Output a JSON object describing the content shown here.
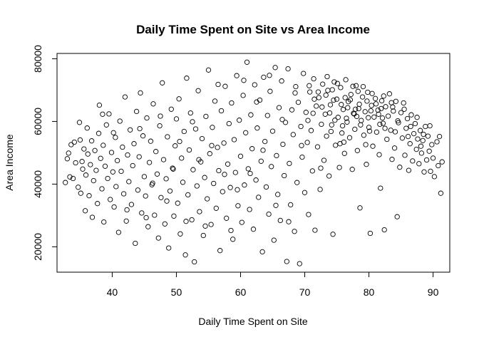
{
  "chart_data": {
    "type": "scatter",
    "title": "Daily Time Spent on Site vs Area Income",
    "xlabel": "Daily  Time Spent on Site",
    "ylabel": "Area Income",
    "xlim": [
      31.4,
      92.6
    ],
    "ylim": [
      11900,
      81700
    ],
    "xticks": [
      40,
      50,
      60,
      70,
      80,
      90
    ],
    "yticks": [
      20000,
      40000,
      60000,
      80000
    ],
    "marker": "open-circle",
    "grid": false,
    "legend": "none",
    "points": [
      [
        32.7,
        40500
      ],
      [
        33.0,
        48100
      ],
      [
        33.2,
        49900
      ],
      [
        33.4,
        42300
      ],
      [
        33.6,
        52600
      ],
      [
        33.9,
        41800
      ],
      [
        34.1,
        53400
      ],
      [
        34.3,
        46800
      ],
      [
        34.7,
        39000
      ],
      [
        34.9,
        59700
      ],
      [
        35.0,
        54100
      ],
      [
        35.1,
        37100
      ],
      [
        35.3,
        47200
      ],
      [
        35.4,
        44800
      ],
      [
        35.6,
        51200
      ],
      [
        35.8,
        31500
      ],
      [
        35.9,
        42900
      ],
      [
        36.1,
        57900
      ],
      [
        36.2,
        49600
      ],
      [
        36.4,
        36300
      ],
      [
        36.6,
        46200
      ],
      [
        36.8,
        53800
      ],
      [
        36.9,
        29400
      ],
      [
        37.1,
        41100
      ],
      [
        37.3,
        50700
      ],
      [
        37.5,
        44400
      ],
      [
        37.7,
        33800
      ],
      [
        37.9,
        56200
      ],
      [
        38.0,
        65200
      ],
      [
        38.2,
        48200
      ],
      [
        38.4,
        38500
      ],
      [
        38.6,
        52400
      ],
      [
        38.7,
        27900
      ],
      [
        38.9,
        45700
      ],
      [
        39.1,
        58900
      ],
      [
        39.3,
        41800
      ],
      [
        39.5,
        62400
      ],
      [
        39.7,
        35100
      ],
      [
        39.9,
        50100
      ],
      [
        40.1,
        43900
      ],
      [
        40.3,
        32700
      ],
      [
        40.5,
        54900
      ],
      [
        40.6,
        39200
      ],
      [
        40.8,
        47500
      ],
      [
        41.0,
        24600
      ],
      [
        41.2,
        60100
      ],
      [
        41.4,
        44100
      ],
      [
        41.6,
        51800
      ],
      [
        41.8,
        36900
      ],
      [
        42.0,
        67800
      ],
      [
        42.2,
        28200
      ],
      [
        42.4,
        49300
      ],
      [
        42.6,
        40800
      ],
      [
        42.8,
        57300
      ],
      [
        43.0,
        33500
      ],
      [
        43.2,
        45900
      ],
      [
        43.4,
        52900
      ],
      [
        43.6,
        21100
      ],
      [
        43.8,
        63200
      ],
      [
        44.0,
        38100
      ],
      [
        44.2,
        48700
      ],
      [
        44.4,
        69100
      ],
      [
        44.6,
        30800
      ],
      [
        44.8,
        55400
      ],
      [
        45.0,
        42400
      ],
      [
        45.2,
        36200
      ],
      [
        45.4,
        61100
      ],
      [
        45.6,
        26400
      ],
      [
        45.8,
        46900
      ],
      [
        46.0,
        53700
      ],
      [
        46.2,
        39800
      ],
      [
        46.4,
        65600
      ],
      [
        46.6,
        30100
      ],
      [
        46.8,
        50400
      ],
      [
        47.0,
        43200
      ],
      [
        47.2,
        22800
      ],
      [
        47.4,
        58600
      ],
      [
        47.6,
        35700
      ],
      [
        47.8,
        72300
      ],
      [
        48.0,
        47800
      ],
      [
        48.2,
        27300
      ],
      [
        48.4,
        41700
      ],
      [
        48.6,
        55100
      ],
      [
        48.8,
        19600
      ],
      [
        49.0,
        37800
      ],
      [
        49.2,
        63900
      ],
      [
        49.4,
        45100
      ],
      [
        49.6,
        29800
      ],
      [
        49.8,
        52200
      ],
      [
        50.0,
        60800
      ],
      [
        50.2,
        33900
      ],
      [
        50.4,
        67200
      ],
      [
        50.6,
        24100
      ],
      [
        50.8,
        48300
      ],
      [
        51.0,
        40600
      ],
      [
        51.2,
        56800
      ],
      [
        51.4,
        17400
      ],
      [
        51.6,
        73800
      ],
      [
        51.8,
        36600
      ],
      [
        52.0,
        50900
      ],
      [
        52.2,
        62700
      ],
      [
        52.4,
        28600
      ],
      [
        52.6,
        44600
      ],
      [
        52.8,
        15200
      ],
      [
        53.0,
        57600
      ],
      [
        53.2,
        39400
      ],
      [
        53.4,
        69800
      ],
      [
        53.6,
        31200
      ],
      [
        53.8,
        47100
      ],
      [
        54.0,
        54500
      ],
      [
        54.2,
        23600
      ],
      [
        54.4,
        42100
      ],
      [
        54.6,
        61600
      ],
      [
        54.8,
        35300
      ],
      [
        55.0,
        76400
      ],
      [
        55.2,
        49700
      ],
      [
        55.4,
        27100
      ],
      [
        55.6,
        58100
      ],
      [
        55.8,
        40200
      ],
      [
        56.0,
        66500
      ],
      [
        56.2,
        32300
      ],
      [
        56.4,
        51700
      ],
      [
        56.6,
        44300
      ],
      [
        56.8,
        18800
      ],
      [
        57.0,
        63400
      ],
      [
        57.2,
        37600
      ],
      [
        57.4,
        53100
      ],
      [
        57.6,
        71200
      ],
      [
        57.8,
        29100
      ],
      [
        58.0,
        46400
      ],
      [
        58.2,
        59300
      ],
      [
        58.4,
        38900
      ],
      [
        58.6,
        65900
      ],
      [
        58.8,
        22400
      ],
      [
        59.0,
        54200
      ],
      [
        59.2,
        43700
      ],
      [
        59.4,
        74600
      ],
      [
        59.6,
        33100
      ],
      [
        59.8,
        60400
      ],
      [
        60.0,
        48900
      ],
      [
        60.2,
        27800
      ],
      [
        60.4,
        68300
      ],
      [
        60.6,
        39700
      ],
      [
        60.8,
        56400
      ],
      [
        61.0,
        78900
      ],
      [
        61.2,
        44900
      ],
      [
        61.4,
        31900
      ],
      [
        61.6,
        62100
      ],
      [
        61.8,
        51300
      ],
      [
        62.0,
        25600
      ],
      [
        62.2,
        71700
      ],
      [
        62.4,
        41300
      ],
      [
        62.6,
        57900
      ],
      [
        62.8,
        35800
      ],
      [
        63.0,
        66800
      ],
      [
        63.2,
        47300
      ],
      [
        63.4,
        18400
      ],
      [
        63.6,
        74100
      ],
      [
        63.8,
        53600
      ],
      [
        64.0,
        39100
      ],
      [
        64.2,
        61900
      ],
      [
        64.4,
        30400
      ],
      [
        64.6,
        69600
      ],
      [
        64.8,
        45600
      ],
      [
        65.0,
        56900
      ],
      [
        65.2,
        22100
      ],
      [
        65.4,
        77200
      ],
      [
        65.6,
        49100
      ],
      [
        65.8,
        36700
      ],
      [
        66.0,
        64400
      ],
      [
        66.2,
        28400
      ],
      [
        66.4,
        72900
      ],
      [
        66.6,
        52700
      ],
      [
        66.8,
        42700
      ],
      [
        67.0,
        59700
      ],
      [
        67.2,
        15300
      ],
      [
        67.4,
        76800
      ],
      [
        67.6,
        46600
      ],
      [
        67.8,
        33400
      ],
      [
        68.0,
        63700
      ],
      [
        68.2,
        55800
      ],
      [
        68.4,
        24900
      ],
      [
        68.6,
        71100
      ],
      [
        68.8,
        40500
      ],
      [
        69.0,
        66100
      ],
      [
        69.2,
        14600
      ],
      [
        69.4,
        58400
      ],
      [
        69.6,
        48600
      ],
      [
        69.8,
        75300
      ],
      [
        70.0,
        37300
      ],
      [
        70.2,
        62900
      ],
      [
        70.4,
        53300
      ],
      [
        70.6,
        30300
      ],
      [
        70.8,
        69400
      ],
      [
        71.0,
        57100
      ],
      [
        71.2,
        44200
      ],
      [
        71.4,
        73600
      ],
      [
        71.6,
        25300
      ],
      [
        71.8,
        64900
      ],
      [
        72.0,
        51900
      ],
      [
        72.2,
        67600
      ],
      [
        72.4,
        38300
      ],
      [
        72.6,
        59100
      ],
      [
        72.8,
        71900
      ],
      [
        73.0,
        47600
      ],
      [
        73.2,
        62300
      ],
      [
        73.4,
        55300
      ],
      [
        73.6,
        69900
      ],
      [
        73.8,
        42600
      ],
      [
        74.0,
        65300
      ],
      [
        74.2,
        58900
      ],
      [
        74.4,
        24000
      ],
      [
        74.6,
        72600
      ],
      [
        74.8,
        52400
      ],
      [
        75.0,
        67100
      ],
      [
        75.2,
        61300
      ],
      [
        75.4,
        45300
      ],
      [
        75.6,
        70800
      ],
      [
        75.8,
        56300
      ],
      [
        76.0,
        63800
      ],
      [
        76.2,
        49800
      ],
      [
        76.4,
        73300
      ],
      [
        76.6,
        59800
      ],
      [
        76.8,
        66300
      ],
      [
        77.0,
        54800
      ],
      [
        77.2,
        68600
      ],
      [
        77.4,
        44700
      ],
      [
        77.6,
        62600
      ],
      [
        77.8,
        57500
      ],
      [
        78.0,
        71400
      ],
      [
        78.2,
        50700
      ],
      [
        78.4,
        64100
      ],
      [
        78.6,
        32400
      ],
      [
        78.8,
        60300
      ],
      [
        79.0,
        67800
      ],
      [
        79.2,
        55600
      ],
      [
        79.4,
        63100
      ],
      [
        79.6,
        46300
      ],
      [
        79.8,
        69300
      ],
      [
        80.0,
        58100
      ],
      [
        80.2,
        24300
      ],
      [
        80.4,
        65100
      ],
      [
        80.6,
        52100
      ],
      [
        80.8,
        61400
      ],
      [
        81.0,
        67300
      ],
      [
        81.2,
        56600
      ],
      [
        81.4,
        63600
      ],
      [
        81.6,
        49400
      ],
      [
        81.8,
        38700
      ],
      [
        82.0,
        66600
      ],
      [
        82.2,
        59400
      ],
      [
        82.4,
        25400
      ],
      [
        82.6,
        64700
      ],
      [
        82.8,
        54300
      ],
      [
        83.0,
        61700
      ],
      [
        83.2,
        68800
      ],
      [
        83.4,
        57200
      ],
      [
        83.6,
        47900
      ],
      [
        83.8,
        63300
      ],
      [
        84.0,
        51500
      ],
      [
        84.2,
        66400
      ],
      [
        84.4,
        29600
      ],
      [
        84.6,
        59600
      ],
      [
        84.8,
        45400
      ],
      [
        85.0,
        62800
      ],
      [
        85.2,
        54700
      ],
      [
        85.4,
        65900
      ],
      [
        85.6,
        49200
      ],
      [
        85.8,
        57800
      ],
      [
        86.0,
        60900
      ],
      [
        86.2,
        44400
      ],
      [
        86.4,
        52900
      ],
      [
        86.6,
        62100
      ],
      [
        86.8,
        47400
      ],
      [
        87.0,
        56100
      ],
      [
        87.2,
        59300
      ],
      [
        87.4,
        51100
      ],
      [
        87.6,
        54400
      ],
      [
        87.8,
        46500
      ],
      [
        88.0,
        57100
      ],
      [
        88.2,
        49900
      ],
      [
        88.4,
        53900
      ],
      [
        88.6,
        43900
      ],
      [
        88.8,
        58400
      ],
      [
        89.0,
        47700
      ],
      [
        89.2,
        55300
      ],
      [
        89.4,
        50500
      ],
      [
        89.6,
        44100
      ],
      [
        89.8,
        52600
      ],
      [
        90.0,
        48300
      ],
      [
        90.2,
        42400
      ],
      [
        90.6,
        53500
      ],
      [
        90.8,
        45900
      ],
      [
        91.0,
        55200
      ],
      [
        91.2,
        37100
      ],
      [
        91.4,
        47100
      ],
      [
        38.5,
        62300
      ],
      [
        40.2,
        56400
      ],
      [
        42.3,
        31800
      ],
      [
        44.3,
        57700
      ],
      [
        45.3,
        29300
      ],
      [
        46.3,
        40300
      ],
      [
        47.5,
        61700
      ],
      [
        48.5,
        34600
      ],
      [
        49.5,
        44800
      ],
      [
        50.5,
        53600
      ],
      [
        51.5,
        28100
      ],
      [
        52.5,
        59900
      ],
      [
        53.5,
        47800
      ],
      [
        54.5,
        26600
      ],
      [
        55.5,
        52300
      ],
      [
        56.5,
        71800
      ],
      [
        57.5,
        43100
      ],
      [
        58.5,
        25200
      ],
      [
        59.5,
        38200
      ],
      [
        60.5,
        73100
      ],
      [
        61.5,
        43400
      ],
      [
        62.5,
        66200
      ],
      [
        63.5,
        50800
      ],
      [
        64.5,
        74700
      ],
      [
        65.5,
        33200
      ],
      [
        66.5,
        60600
      ],
      [
        67.5,
        28000
      ],
      [
        68.5,
        69100
      ],
      [
        69.5,
        52300
      ],
      [
        70.5,
        60300
      ],
      [
        71.5,
        67100
      ],
      [
        72.5,
        45100
      ],
      [
        73.5,
        74300
      ],
      [
        74.5,
        66800
      ],
      [
        75.5,
        52900
      ],
      [
        76.5,
        61000
      ],
      [
        77.5,
        71200
      ],
      [
        78.5,
        65500
      ],
      [
        79.5,
        52600
      ],
      [
        80.5,
        68900
      ],
      [
        81.5,
        62300
      ],
      [
        82.5,
        57800
      ],
      [
        83.5,
        66000
      ],
      [
        84.5,
        60200
      ],
      [
        85.5,
        63900
      ],
      [
        86.5,
        58400
      ],
      [
        87.5,
        61300
      ],
      [
        88.5,
        55900
      ],
      [
        89.5,
        58600
      ],
      [
        74.3,
        70100
      ],
      [
        76.3,
        67600
      ],
      [
        78.3,
        69600
      ],
      [
        80.3,
        63400
      ],
      [
        82.3,
        68100
      ],
      [
        75.7,
        65400
      ],
      [
        77.7,
        62400
      ],
      [
        79.7,
        66500
      ],
      [
        81.7,
        59100
      ],
      [
        83.7,
        64600
      ],
      [
        73.9,
        62700
      ],
      [
        75.9,
        58600
      ],
      [
        77.9,
        63900
      ],
      [
        79.9,
        61200
      ],
      [
        81.9,
        64100
      ],
      [
        73.3,
        68400
      ],
      [
        75.1,
        72100
      ],
      [
        77.1,
        66900
      ],
      [
        79.1,
        71100
      ],
      [
        81.1,
        65600
      ],
      [
        70.7,
        71400
      ],
      [
        72.7,
        64600
      ],
      [
        74.7,
        60400
      ],
      [
        76.7,
        64400
      ],
      [
        78.7,
        58900
      ],
      [
        71.3,
        62600
      ],
      [
        72.1,
        69400
      ],
      [
        74.1,
        56800
      ],
      [
        76.1,
        53400
      ],
      [
        78.1,
        61600
      ],
      [
        80.1,
        56900
      ],
      [
        82.1,
        61100
      ],
      [
        84.1,
        56700
      ],
      [
        86.1,
        55200
      ],
      [
        88.1,
        52100
      ]
    ]
  }
}
